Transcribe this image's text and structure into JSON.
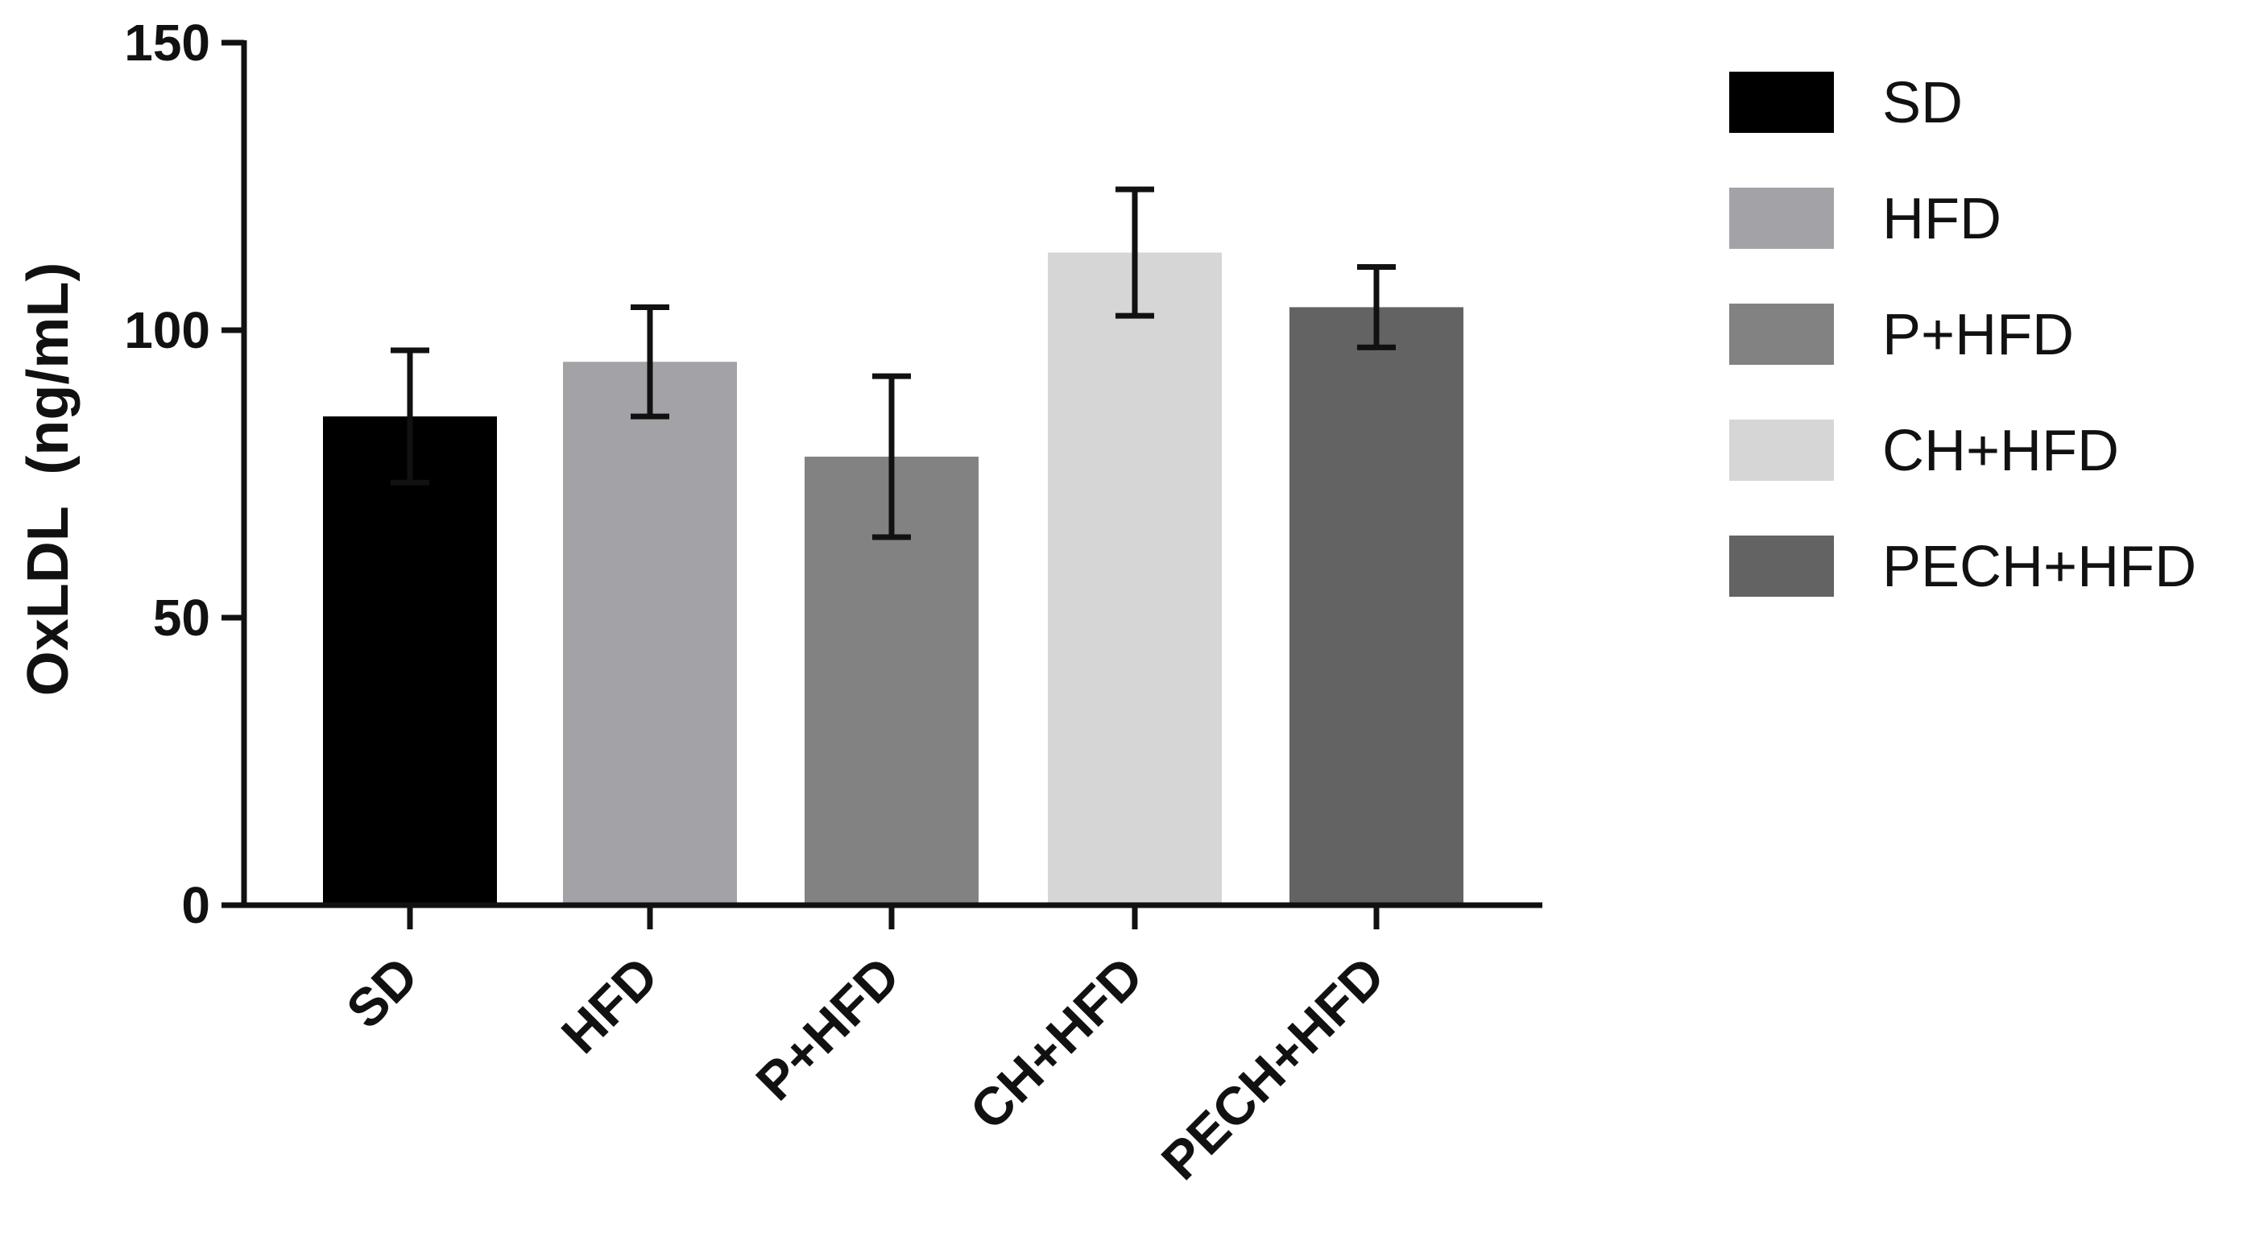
{
  "chart_data": {
    "type": "bar",
    "title": "",
    "xlabel": "",
    "ylabel": "OxLDL  (ng/mL)",
    "ylim": [
      0,
      150
    ],
    "yticks": [
      0,
      50,
      100,
      150
    ],
    "categories": [
      "SD",
      "HFD",
      "P+HFD",
      "CH+HFD",
      "PECH+HFD"
    ],
    "values": [
      85,
      94.5,
      78,
      113.5,
      104
    ],
    "errors": [
      11.5,
      9.5,
      14,
      11,
      7
    ],
    "colors": [
      "#000000",
      "#a3a2a6",
      "#828282",
      "#d6d6d6",
      "#636363"
    ],
    "grid": false,
    "legend": {
      "placement": "right",
      "entries": [
        "SD",
        "HFD",
        "P+HFD",
        "CH+HFD",
        "PECH+HFD"
      ]
    }
  }
}
